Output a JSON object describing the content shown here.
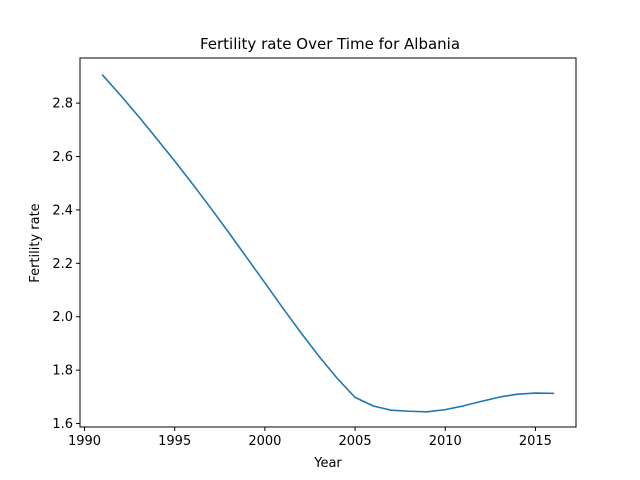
{
  "chart_data": {
    "type": "line",
    "title": "Fertility rate Over Time for Albania",
    "xlabel": "Year",
    "ylabel": "Fertility rate",
    "xlim": [
      1989.75,
      2017.25
    ],
    "ylim": [
      1.587,
      2.969
    ],
    "x_ticks": [
      1990,
      1995,
      2000,
      2005,
      2010,
      2015
    ],
    "y_ticks": [
      1.6,
      1.8,
      2.0,
      2.2,
      2.4,
      2.6,
      2.8
    ],
    "grid": false,
    "series": [
      {
        "color": "#1f77b4",
        "x": [
          1991,
          1992,
          1993,
          1994,
          1995,
          1996,
          1997,
          1998,
          1999,
          2000,
          2001,
          2002,
          2003,
          2004,
          2005,
          2006,
          2007,
          2008,
          2009,
          2010,
          2011,
          2012,
          2013,
          2014,
          2015,
          2016
        ],
        "y": [
          2.905,
          2.829,
          2.75,
          2.667,
          2.583,
          2.496,
          2.407,
          2.315,
          2.221,
          2.127,
          2.032,
          1.94,
          1.852,
          1.77,
          1.698,
          1.666,
          1.65,
          1.646,
          1.644,
          1.652,
          1.666,
          1.683,
          1.699,
          1.71,
          1.714,
          1.713
        ]
      }
    ]
  }
}
